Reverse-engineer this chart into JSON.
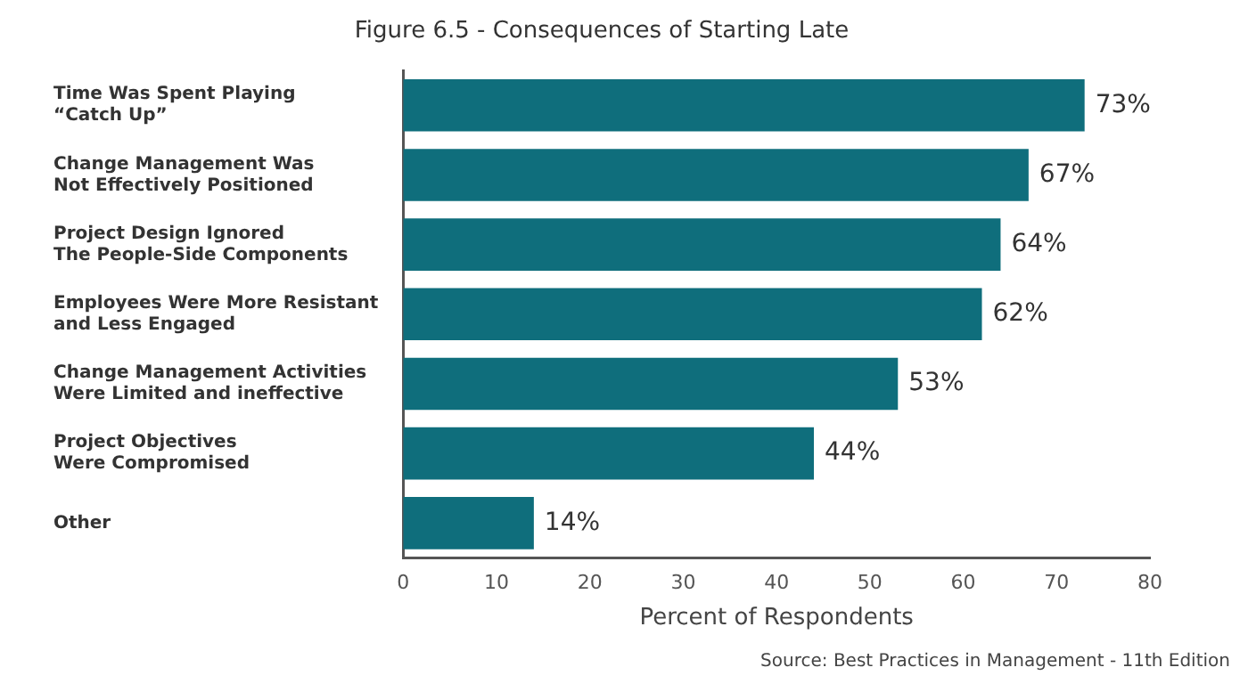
{
  "chart_data": {
    "type": "bar",
    "orientation": "horizontal",
    "title": "Figure 6.5 - Consequences of Starting Late",
    "xlabel": "Percent of Respondents",
    "categories": [
      "Time Was Spent Playing\n“Catch Up”",
      "Change Management Was\nNot Effectively Positioned",
      "Project Design Ignored\nThe People-Side Components",
      "Employees Were More Resistant\nand Less Engaged",
      "Change Management Activities\nWere Limited and ineffective",
      "Project Objectives\nWere Compromised",
      "Other"
    ],
    "values": [
      73,
      67,
      64,
      62,
      53,
      44,
      14
    ],
    "value_labels": [
      "73%",
      "67%",
      "64%",
      "62%",
      "53%",
      "44%",
      "14%"
    ],
    "color": "#0f6e7c",
    "xlim": [
      0,
      80
    ],
    "xticks": [
      0,
      10,
      20,
      30,
      40,
      50,
      60,
      70,
      80
    ],
    "grid": false,
    "legend": false,
    "annotations": [
      "Source: Best Practices in Management - 11th Edition"
    ]
  }
}
